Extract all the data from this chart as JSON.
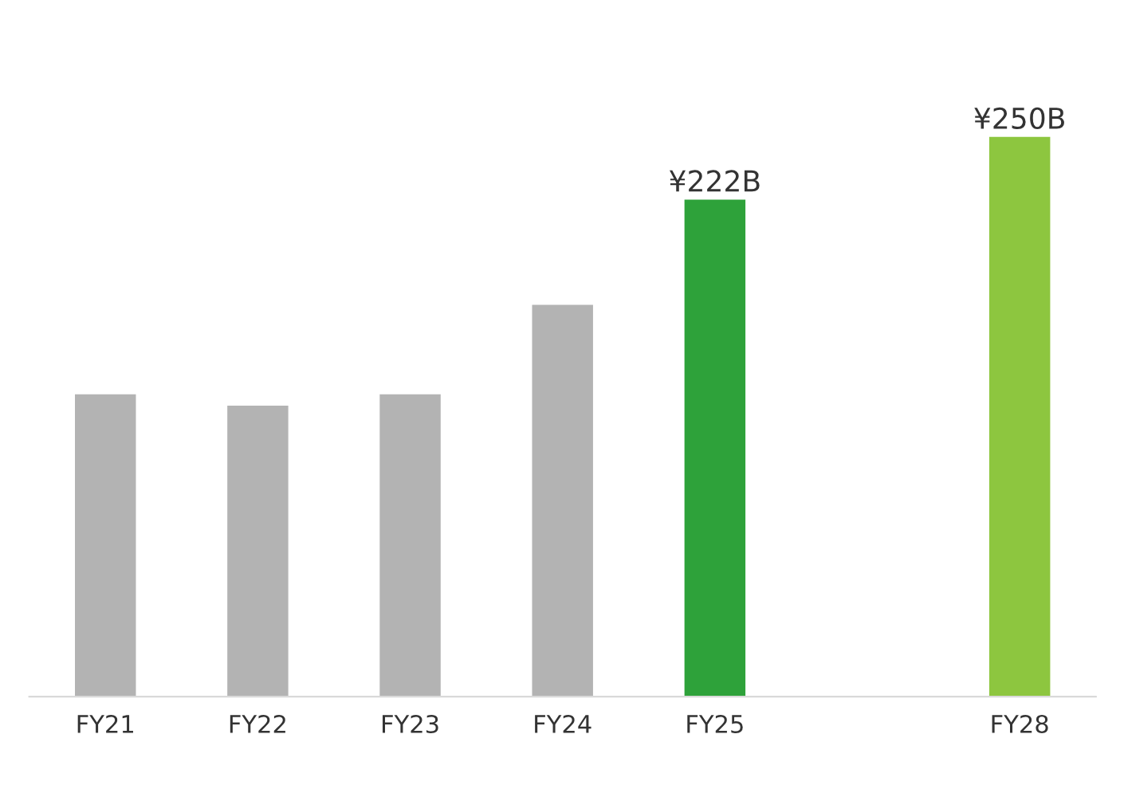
{
  "chart_data": {
    "type": "bar",
    "categories": [
      "FY21",
      "FY22",
      "FY23",
      "FY24",
      "FY25",
      null,
      "FY28"
    ],
    "values": [
      135,
      130,
      135,
      175,
      222,
      null,
      250
    ],
    "colors": [
      "#b3b3b3",
      "#b3b3b3",
      "#b3b3b3",
      "#b3b3b3",
      "#2ea23a",
      "#b3b3b3",
      "#8dc63f"
    ],
    "value_labels": [
      null,
      null,
      null,
      null,
      "¥222B",
      null,
      "¥250B"
    ],
    "grid": false,
    "legend": false
  }
}
